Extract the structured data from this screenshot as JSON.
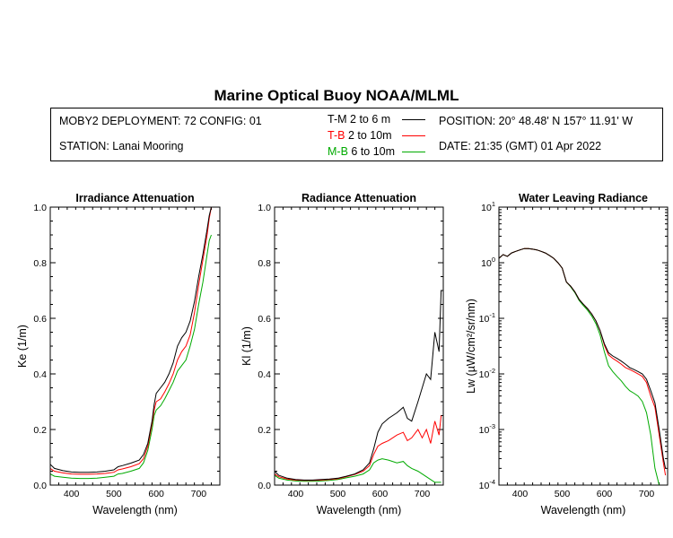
{
  "header": {
    "title": "Marine Optical Buoy NOAA/MLML",
    "deployment": "MOBY2 DEPLOYMENT: 72 CONFIG: 01",
    "station": "STATION: Lanai Mooring",
    "position": "POSITION: 20° 48.48' N   157° 11.91' W",
    "date": "DATE: 21:35 (GMT) 01 Apr 2022"
  },
  "legend": [
    {
      "code": "T-M",
      "range": "2 to 6  m",
      "color": "#000000"
    },
    {
      "code": "T-B",
      "range": "2 to 10m",
      "color": "#ff0000"
    },
    {
      "code": "M-B",
      "range": "6 to 10m",
      "color": "#00aa00"
    }
  ],
  "chart_data": [
    {
      "type": "line",
      "title": "Irradiance Attenuation",
      "xlabel": "Wavelength (nm)",
      "ylabel": "Ke  (1/m)",
      "xlim": [
        350,
        750
      ],
      "ylim": [
        0,
        1.0
      ],
      "xticks": [
        400,
        500,
        600,
        700
      ],
      "yticks": [
        "0.0",
        "0.2",
        "0.4",
        "0.6",
        "0.8",
        "1.0"
      ],
      "x": [
        350,
        360,
        380,
        400,
        420,
        440,
        460,
        480,
        500,
        510,
        520,
        540,
        560,
        570,
        580,
        590,
        595,
        600,
        610,
        620,
        630,
        640,
        650,
        660,
        670,
        680,
        690,
        700,
        710,
        720,
        725,
        730
      ],
      "series": [
        {
          "name": "T-M",
          "color": "#000000",
          "values": [
            0.075,
            0.06,
            0.052,
            0.047,
            0.046,
            0.046,
            0.047,
            0.05,
            0.055,
            0.066,
            0.07,
            0.079,
            0.09,
            0.11,
            0.15,
            0.23,
            0.29,
            0.33,
            0.35,
            0.37,
            0.4,
            0.44,
            0.5,
            0.53,
            0.55,
            0.59,
            0.66,
            0.75,
            0.83,
            0.92,
            0.97,
            1.0
          ]
        },
        {
          "name": "T-B",
          "color": "#ff0000",
          "values": [
            0.06,
            0.05,
            0.044,
            0.04,
            0.039,
            0.039,
            0.04,
            0.042,
            0.046,
            0.055,
            0.058,
            0.066,
            0.077,
            0.095,
            0.14,
            0.22,
            0.27,
            0.3,
            0.31,
            0.335,
            0.365,
            0.4,
            0.45,
            0.48,
            0.5,
            0.54,
            0.62,
            0.72,
            0.81,
            0.9,
            0.96,
            1.0
          ]
        },
        {
          "name": "M-B",
          "color": "#00aa00",
          "values": [
            0.04,
            0.032,
            0.028,
            0.025,
            0.024,
            0.024,
            0.025,
            0.028,
            0.032,
            0.04,
            0.042,
            0.05,
            0.06,
            0.08,
            0.125,
            0.2,
            0.25,
            0.27,
            0.285,
            0.31,
            0.34,
            0.37,
            0.41,
            0.43,
            0.45,
            0.5,
            0.56,
            0.65,
            0.73,
            0.83,
            0.88,
            0.9
          ]
        }
      ]
    },
    {
      "type": "line",
      "title": "Radiance Attenuation",
      "xlabel": "Wavelength (nm)",
      "ylabel": "Kl  (1/m)",
      "xlim": [
        350,
        750
      ],
      "ylim": [
        0,
        1.0
      ],
      "xticks": [
        400,
        500,
        600,
        700
      ],
      "yticks": [
        "0.0",
        "0.2",
        "0.4",
        "0.6",
        "0.8",
        "1.0"
      ],
      "x": [
        350,
        360,
        380,
        400,
        420,
        440,
        460,
        480,
        500,
        520,
        540,
        560,
        575,
        585,
        595,
        605,
        620,
        640,
        655,
        665,
        675,
        690,
        700,
        710,
        720,
        730,
        740,
        745
      ],
      "series": [
        {
          "name": "T-M",
          "color": "#000000",
          "values": [
            0.05,
            0.035,
            0.025,
            0.02,
            0.018,
            0.018,
            0.02,
            0.022,
            0.025,
            0.032,
            0.04,
            0.055,
            0.08,
            0.13,
            0.19,
            0.22,
            0.24,
            0.26,
            0.28,
            0.24,
            0.23,
            0.3,
            0.35,
            0.4,
            0.38,
            0.55,
            0.48,
            0.7
          ]
        },
        {
          "name": "T-B",
          "color": "#ff0000",
          "values": [
            0.04,
            0.03,
            0.022,
            0.018,
            0.017,
            0.017,
            0.018,
            0.02,
            0.023,
            0.03,
            0.038,
            0.05,
            0.07,
            0.11,
            0.14,
            0.15,
            0.16,
            0.18,
            0.19,
            0.16,
            0.17,
            0.2,
            0.17,
            0.2,
            0.15,
            0.23,
            0.18,
            0.25
          ]
        },
        {
          "name": "M-B",
          "color": "#00aa00",
          "values": [
            0.035,
            0.025,
            0.018,
            0.015,
            0.014,
            0.014,
            0.015,
            0.017,
            0.02,
            0.026,
            0.032,
            0.04,
            0.055,
            0.08,
            0.09,
            0.095,
            0.09,
            0.08,
            0.085,
            0.07,
            0.06,
            0.05,
            0.04,
            0.03,
            0.02,
            0.01,
            0.01,
            0.01
          ]
        }
      ]
    },
    {
      "type": "line",
      "title": "Water Leaving Radiance",
      "xlabel": "Wavelength (nm)",
      "ylabel": "Lw  (µW/cm²/sr/nm)",
      "yscale": "log",
      "xlim": [
        350,
        750
      ],
      "ylim": [
        0.0001,
        10
      ],
      "xticks": [
        400,
        500,
        600,
        700
      ],
      "yticks": [
        {
          "base": "10",
          "exp": "1",
          "value": 10
        },
        {
          "base": "10",
          "exp": "0",
          "value": 1
        },
        {
          "base": "10",
          "exp": "-1",
          "value": 0.1
        },
        {
          "base": "10",
          "exp": "-2",
          "value": 0.01
        },
        {
          "base": "10",
          "exp": "-3",
          "value": 0.001
        },
        {
          "base": "10",
          "exp": "-4",
          "value": 0.0001
        }
      ],
      "x": [
        350,
        360,
        370,
        380,
        390,
        400,
        410,
        420,
        430,
        440,
        450,
        460,
        470,
        480,
        490,
        500,
        510,
        520,
        530,
        540,
        550,
        560,
        570,
        580,
        590,
        600,
        610,
        620,
        630,
        640,
        650,
        660,
        670,
        680,
        690,
        700,
        710,
        720,
        730,
        740,
        745
      ],
      "series": [
        {
          "name": "T-M",
          "color": "#000000",
          "values": [
            1.2,
            1.4,
            1.3,
            1.5,
            1.6,
            1.7,
            1.8,
            1.8,
            1.75,
            1.7,
            1.6,
            1.5,
            1.35,
            1.2,
            1.0,
            0.8,
            0.45,
            0.38,
            0.3,
            0.22,
            0.18,
            0.15,
            0.12,
            0.09,
            0.06,
            0.035,
            0.024,
            0.021,
            0.019,
            0.017,
            0.015,
            0.013,
            0.012,
            0.011,
            0.01,
            0.008,
            0.005,
            0.003,
            0.001,
            0.0003,
            0.0002
          ]
        },
        {
          "name": "T-B",
          "color": "#ff0000",
          "values": [
            1.2,
            1.4,
            1.3,
            1.5,
            1.6,
            1.7,
            1.8,
            1.8,
            1.75,
            1.7,
            1.6,
            1.5,
            1.35,
            1.2,
            1.0,
            0.8,
            0.45,
            0.38,
            0.3,
            0.22,
            0.18,
            0.15,
            0.12,
            0.09,
            0.06,
            0.033,
            0.022,
            0.019,
            0.017,
            0.015,
            0.013,
            0.012,
            0.011,
            0.01,
            0.009,
            0.007,
            0.004,
            0.0025,
            0.0008,
            0.00025,
            0.00015
          ]
        },
        {
          "name": "M-B",
          "color": "#00aa00",
          "values": [
            1.2,
            1.4,
            1.3,
            1.5,
            1.6,
            1.7,
            1.8,
            1.8,
            1.75,
            1.7,
            1.6,
            1.5,
            1.35,
            1.2,
            1.0,
            0.8,
            0.45,
            0.37,
            0.29,
            0.21,
            0.17,
            0.14,
            0.11,
            0.08,
            0.05,
            0.025,
            0.014,
            0.011,
            0.009,
            0.0075,
            0.006,
            0.005,
            0.0045,
            0.004,
            0.0032,
            0.002,
            0.0008,
            0.0002,
            0.0001,
            0.0001,
            0.0001
          ]
        }
      ]
    }
  ]
}
